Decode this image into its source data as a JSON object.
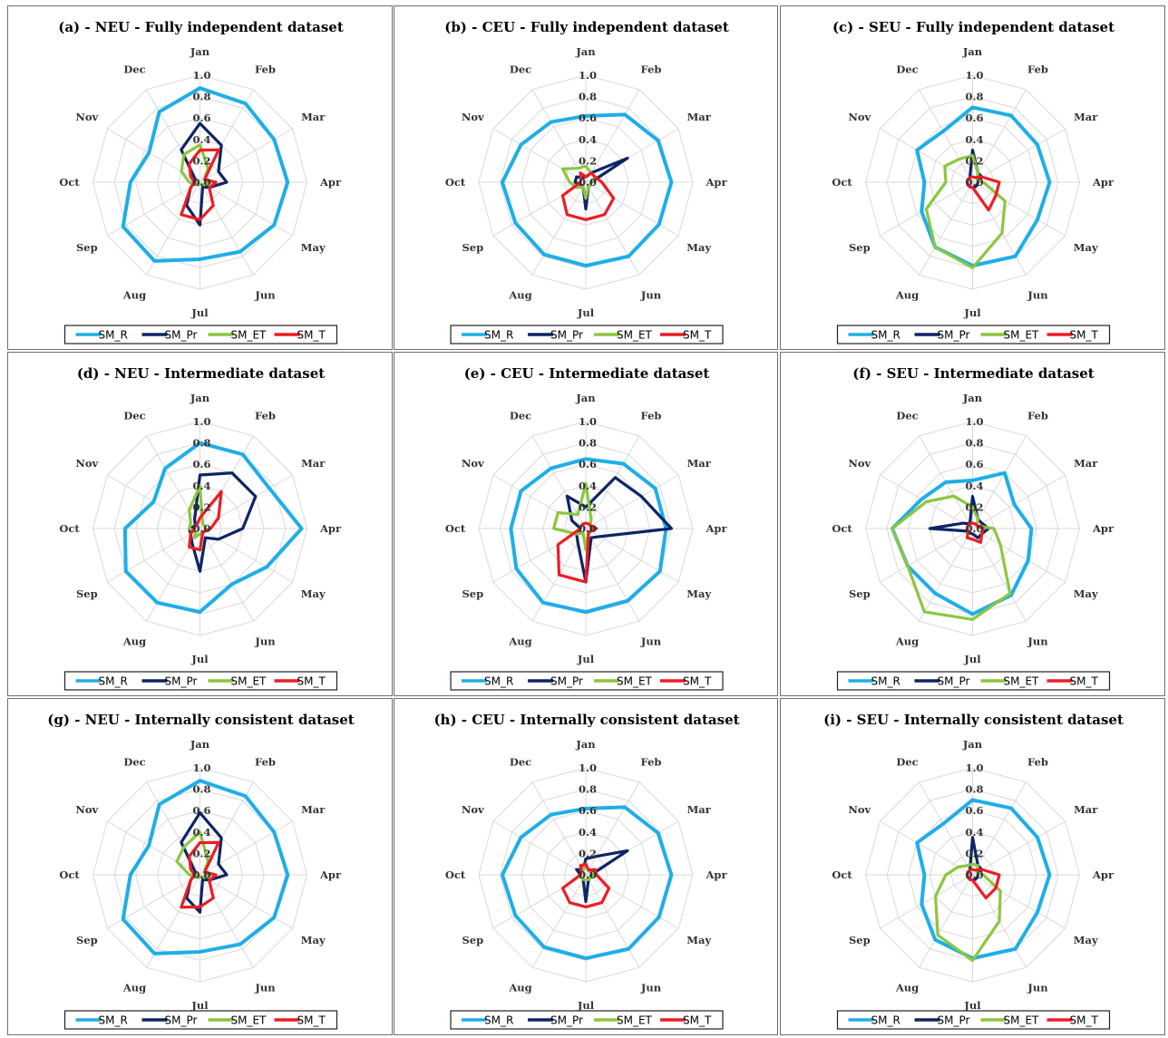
{
  "colors": {
    "SM_R": "#1eaee8",
    "SM_Pr": "#0d2466",
    "SM_ET": "#8cc63f",
    "SM_T": "#ee1c24"
  },
  "legend": [
    "SM_R",
    "SM_Pr",
    "SM_ET",
    "SM_T"
  ],
  "chart_data": [
    {
      "type": "radar",
      "title": "(a) - NEU - Fully independent dataset",
      "categories": [
        "Jan",
        "Feb",
        "Mar",
        "Apr",
        "May",
        "Jun",
        "Jul",
        "Aug",
        "Sep",
        "Oct",
        "Nov",
        "Dec"
      ],
      "ticks": [
        "0.0",
        "0.2",
        "0.4",
        "0.6",
        "0.8",
        "1.0"
      ],
      "rlim": [
        0,
        1
      ],
      "series": [
        {
          "name": "SM_R",
          "values": [
            0.88,
            0.85,
            0.8,
            0.82,
            0.8,
            0.75,
            0.72,
            0.85,
            0.83,
            0.65,
            0.55,
            0.76
          ]
        },
        {
          "name": "SM_Pr",
          "values": [
            0.55,
            0.4,
            0.2,
            0.25,
            0.1,
            0.05,
            0.4,
            0.25,
            0.1,
            0.05,
            0.05,
            0.35
          ]
        },
        {
          "name": "SM_ET",
          "values": [
            0.35,
            0.15,
            0.05,
            0.1,
            0.05,
            0.02,
            0.02,
            0.03,
            0.03,
            0.1,
            0.2,
            0.3
          ]
        },
        {
          "name": "SM_T",
          "values": [
            0.3,
            0.35,
            0.05,
            0.15,
            0.1,
            0.25,
            0.35,
            0.35,
            0.1,
            0.05,
            0.1,
            0.2
          ]
        }
      ]
    },
    {
      "type": "radar",
      "title": "(b) - CEU - Fully independent dataset",
      "categories": [
        "Jan",
        "Feb",
        "Mar",
        "Apr",
        "May",
        "Jun",
        "Jul",
        "Aug",
        "Sep",
        "Oct",
        "Nov",
        "Dec"
      ],
      "ticks": [
        "0.0",
        "0.2",
        "0.4",
        "0.6",
        "0.8",
        "1.0"
      ],
      "rlim": [
        0,
        1
      ],
      "series": [
        {
          "name": "SM_R",
          "values": [
            0.62,
            0.73,
            0.78,
            0.8,
            0.79,
            0.8,
            0.78,
            0.78,
            0.76,
            0.78,
            0.7,
            0.65
          ]
        },
        {
          "name": "SM_Pr",
          "values": [
            0.05,
            0.1,
            0.45,
            0.05,
            0.05,
            0.05,
            0.25,
            0.05,
            0.05,
            0.1,
            0.1,
            0.05
          ]
        },
        {
          "name": "SM_ET",
          "values": [
            0.15,
            0.1,
            0.1,
            0.05,
            0.05,
            0.05,
            0.15,
            0.05,
            0.1,
            0.15,
            0.25,
            0.15
          ]
        },
        {
          "name": "SM_T",
          "values": [
            0.05,
            0.1,
            0.1,
            0.15,
            0.3,
            0.35,
            0.35,
            0.35,
            0.25,
            0.05,
            0.05,
            0.1
          ]
        }
      ]
    },
    {
      "type": "radar",
      "title": "(c) - SEU - Fully independent dataset",
      "categories": [
        "Jan",
        "Feb",
        "Mar",
        "Apr",
        "May",
        "Jun",
        "Jul",
        "Aug",
        "Sep",
        "Oct",
        "Nov",
        "Dec"
      ],
      "ticks": [
        "0.0",
        "0.2",
        "0.4",
        "0.6",
        "0.8",
        "1.0"
      ],
      "rlim": [
        0,
        1
      ],
      "series": [
        {
          "name": "SM_R",
          "values": [
            0.7,
            0.72,
            0.7,
            0.72,
            0.7,
            0.8,
            0.78,
            0.7,
            0.55,
            0.45,
            0.6,
            0.55
          ]
        },
        {
          "name": "SM_Pr",
          "values": [
            0.3,
            0.1,
            0.1,
            0.05,
            0.05,
            0.05,
            0.05,
            0.05,
            0.05,
            0.05,
            0.05,
            0.05
          ]
        },
        {
          "name": "SM_ET",
          "values": [
            0.25,
            0.1,
            0.05,
            0.1,
            0.35,
            0.55,
            0.8,
            0.7,
            0.5,
            0.25,
            0.3,
            0.25
          ]
        },
        {
          "name": "SM_T",
          "values": [
            0.05,
            0.05,
            0.1,
            0.25,
            0.25,
            0.3,
            0.05,
            0.05,
            0.05,
            0.05,
            0.05,
            0.05
          ]
        }
      ]
    },
    {
      "type": "radar",
      "title": "(d) - NEU - Intermediate dataset",
      "categories": [
        "Jan",
        "Feb",
        "Mar",
        "Apr",
        "May",
        "Jun",
        "Jul",
        "Aug",
        "Sep",
        "Oct",
        "Nov",
        "Dec"
      ],
      "ticks": [
        "0.0",
        "0.2",
        "0.4",
        "0.6",
        "0.8",
        "1.0"
      ],
      "rlim": [
        0,
        1
      ],
      "series": [
        {
          "name": "SM_R",
          "values": [
            0.8,
            0.8,
            0.75,
            0.95,
            0.72,
            0.6,
            0.78,
            0.8,
            0.8,
            0.7,
            0.5,
            0.65
          ]
        },
        {
          "name": "SM_Pr",
          "values": [
            0.5,
            0.6,
            0.6,
            0.4,
            0.2,
            0.1,
            0.4,
            0.15,
            0.1,
            0.1,
            0.05,
            0.1
          ]
        },
        {
          "name": "SM_ET",
          "values": [
            0.4,
            0.05,
            0.05,
            0.05,
            0.05,
            0.05,
            0.05,
            0.1,
            0.05,
            0.1,
            0.1,
            0.2
          ]
        },
        {
          "name": "SM_T",
          "values": [
            0.1,
            0.4,
            0.2,
            0.1,
            0.05,
            0.05,
            0.2,
            0.2,
            0.1,
            0.05,
            0.05,
            0.05
          ]
        }
      ]
    },
    {
      "type": "radar",
      "title": "(e) - CEU - Intermediate dataset",
      "categories": [
        "Jan",
        "Feb",
        "Mar",
        "Apr",
        "May",
        "Jun",
        "Jul",
        "Aug",
        "Sep",
        "Oct",
        "Nov",
        "Dec"
      ],
      "ticks": [
        "0.0",
        "0.2",
        "0.4",
        "0.6",
        "0.8",
        "1.0"
      ],
      "rlim": [
        0,
        1
      ],
      "series": [
        {
          "name": "SM_R",
          "values": [
            0.65,
            0.7,
            0.75,
            0.75,
            0.8,
            0.78,
            0.78,
            0.8,
            0.75,
            0.7,
            0.7,
            0.65
          ]
        },
        {
          "name": "SM_Pr",
          "values": [
            0.2,
            0.55,
            0.6,
            0.8,
            0.15,
            0.1,
            0.5,
            0.15,
            0.1,
            0.05,
            0.15,
            0.35
          ]
        },
        {
          "name": "SM_ET",
          "values": [
            0.42,
            0.1,
            0.05,
            0.05,
            0.05,
            0.05,
            0.2,
            0.05,
            0.1,
            0.3,
            0.3,
            0.15
          ]
        },
        {
          "name": "SM_T",
          "values": [
            0.05,
            0.05,
            0.05,
            0.1,
            0.05,
            0.05,
            0.5,
            0.5,
            0.3,
            0.05,
            0.05,
            0.05
          ]
        }
      ]
    },
    {
      "type": "radar",
      "title": "(f) - SEU - Intermediate dataset",
      "categories": [
        "Jan",
        "Feb",
        "Mar",
        "Apr",
        "May",
        "Jun",
        "Jul",
        "Aug",
        "Sep",
        "Oct",
        "Nov",
        "Dec"
      ],
      "ticks": [
        "0.0",
        "0.2",
        "0.4",
        "0.6",
        "0.8",
        "1.0"
      ],
      "rlim": [
        0,
        1
      ],
      "series": [
        {
          "name": "SM_R",
          "values": [
            0.45,
            0.6,
            0.45,
            0.55,
            0.6,
            0.72,
            0.8,
            0.7,
            0.7,
            0.75,
            0.55,
            0.5
          ]
        },
        {
          "name": "SM_Pr",
          "values": [
            0.3,
            0.1,
            0.1,
            0.15,
            0.1,
            0.1,
            0.05,
            0.05,
            0.05,
            0.4,
            0.1,
            0.05
          ]
        },
        {
          "name": "SM_ET",
          "values": [
            0.2,
            0.1,
            0.05,
            0.2,
            0.3,
            0.7,
            0.85,
            0.9,
            0.7,
            0.75,
            0.5,
            0.35
          ]
        },
        {
          "name": "SM_T",
          "values": [
            0.05,
            0.05,
            0.05,
            0.1,
            0.1,
            0.15,
            0.1,
            0.1,
            0.05,
            0.05,
            0.05,
            0.05
          ]
        }
      ]
    },
    {
      "type": "radar",
      "title": "(g) - NEU - Internally consistent dataset",
      "categories": [
        "Jan",
        "Feb",
        "Mar",
        "Apr",
        "May",
        "Jun",
        "Jul",
        "Aug",
        "Sep",
        "Oct",
        "Nov",
        "Dec"
      ],
      "ticks": [
        "0.0",
        "0.2",
        "0.4",
        "0.6",
        "0.8",
        "1.0"
      ],
      "rlim": [
        0,
        1
      ],
      "series": [
        {
          "name": "SM_R",
          "values": [
            0.88,
            0.85,
            0.8,
            0.82,
            0.8,
            0.75,
            0.72,
            0.85,
            0.83,
            0.65,
            0.55,
            0.76
          ]
        },
        {
          "name": "SM_Pr",
          "values": [
            0.58,
            0.4,
            0.2,
            0.25,
            0.1,
            0.05,
            0.35,
            0.25,
            0.1,
            0.05,
            0.05,
            0.35
          ]
        },
        {
          "name": "SM_ET",
          "values": [
            0.4,
            0.15,
            0.05,
            0.1,
            0.05,
            0.02,
            0.02,
            0.03,
            0.03,
            0.1,
            0.25,
            0.3
          ]
        },
        {
          "name": "SM_T",
          "values": [
            0.3,
            0.35,
            0.05,
            0.15,
            0.1,
            0.25,
            0.3,
            0.35,
            0.1,
            0.05,
            0.1,
            0.2
          ]
        }
      ]
    },
    {
      "type": "radar",
      "title": "(h) - CEU - Internally consistent dataset",
      "categories": [
        "Jan",
        "Feb",
        "Mar",
        "Apr",
        "May",
        "Jun",
        "Jul",
        "Aug",
        "Sep",
        "Oct",
        "Nov",
        "Dec"
      ],
      "ticks": [
        "0.0",
        "0.2",
        "0.4",
        "0.6",
        "0.8",
        "1.0"
      ],
      "rlim": [
        0,
        1
      ],
      "series": [
        {
          "name": "SM_R",
          "values": [
            0.62,
            0.73,
            0.78,
            0.8,
            0.79,
            0.8,
            0.78,
            0.78,
            0.76,
            0.78,
            0.7,
            0.65
          ]
        },
        {
          "name": "SM_Pr",
          "values": [
            0.15,
            0.2,
            0.45,
            0.05,
            0.05,
            0.05,
            0.25,
            0.05,
            0.05,
            0.05,
            0.1,
            0.05
          ]
        },
        {
          "name": "SM_ET",
          "values": [
            0.1,
            0.05,
            0.05,
            0.1,
            0.05,
            0.05,
            0.05,
            0.05,
            0.05,
            0.05,
            0.05,
            0.05
          ]
        },
        {
          "name": "SM_T",
          "values": [
            0.1,
            0.05,
            0.1,
            0.1,
            0.25,
            0.3,
            0.3,
            0.3,
            0.25,
            0.05,
            0.05,
            0.1
          ]
        }
      ]
    },
    {
      "type": "radar",
      "title": "(i) - SEU - Internally consistent dataset",
      "categories": [
        "Jan",
        "Feb",
        "Mar",
        "Apr",
        "May",
        "Jun",
        "Jul",
        "Aug",
        "Sep",
        "Oct",
        "Nov",
        "Dec"
      ],
      "ticks": [
        "0.0",
        "0.2",
        "0.4",
        "0.6",
        "0.8",
        "1.0"
      ],
      "rlim": [
        0,
        1
      ],
      "series": [
        {
          "name": "SM_R",
          "values": [
            0.7,
            0.72,
            0.7,
            0.72,
            0.7,
            0.8,
            0.78,
            0.7,
            0.55,
            0.45,
            0.6,
            0.55
          ]
        },
        {
          "name": "SM_Pr",
          "values": [
            0.35,
            0.1,
            0.1,
            0.05,
            0.05,
            0.05,
            0.05,
            0.05,
            0.05,
            0.05,
            0.05,
            0.05
          ]
        },
        {
          "name": "SM_ET",
          "values": [
            0.1,
            0.1,
            0.05,
            0.1,
            0.3,
            0.5,
            0.8,
            0.65,
            0.4,
            0.25,
            0.15,
            0.1
          ]
        },
        {
          "name": "SM_T",
          "values": [
            0.05,
            0.05,
            0.1,
            0.25,
            0.25,
            0.25,
            0.05,
            0.05,
            0.05,
            0.05,
            0.05,
            0.05
          ]
        }
      ]
    }
  ]
}
